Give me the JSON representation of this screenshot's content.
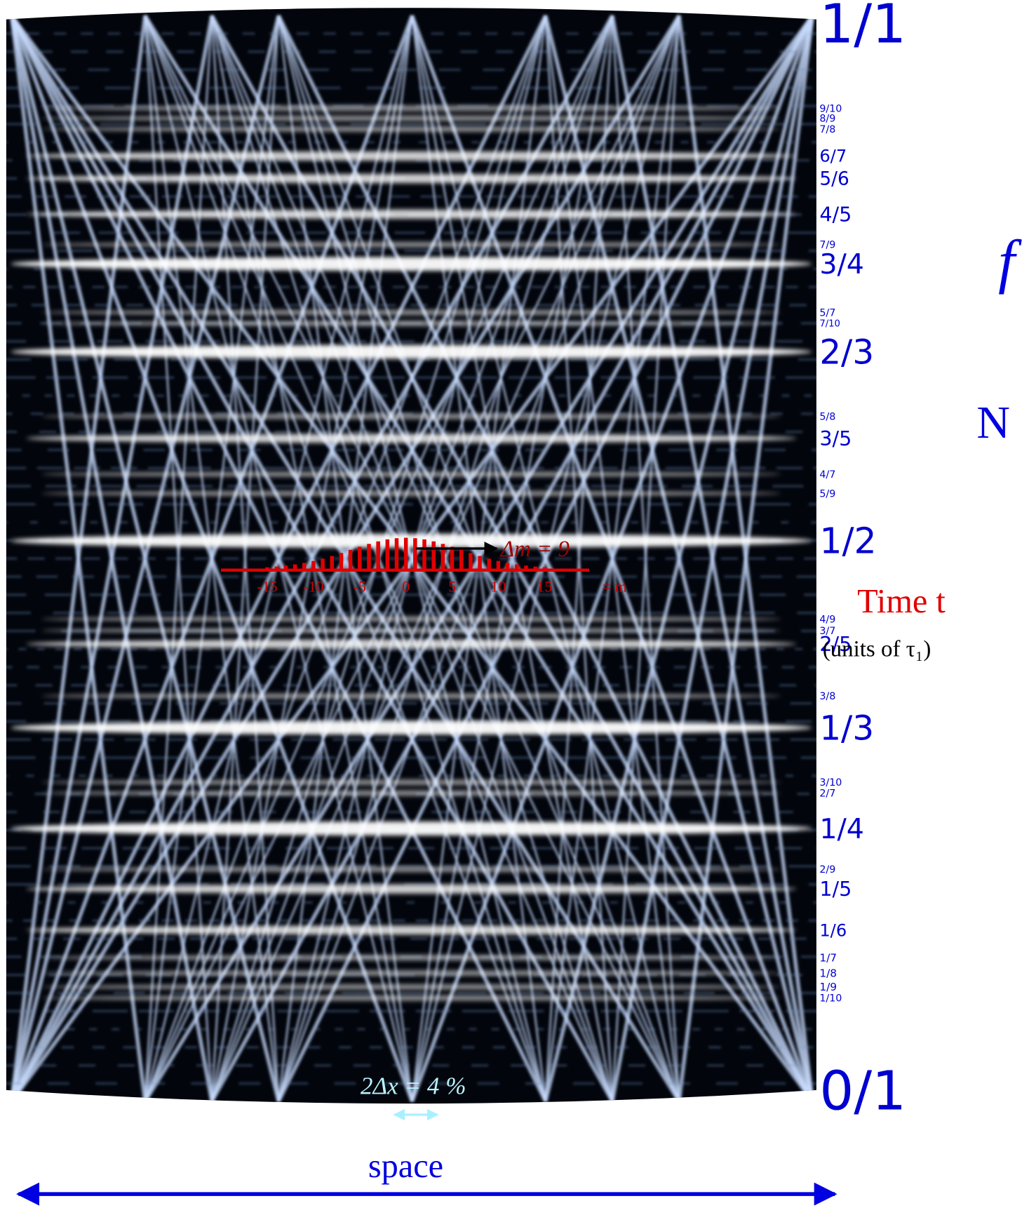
{
  "fractions": [
    "1/1",
    "9/10",
    "8/9",
    "7/8",
    "6/7",
    "5/6",
    "4/5",
    "7/9",
    "3/4",
    "5/7",
    "7/10",
    "2/3",
    "5/8",
    "3/5",
    "4/7",
    "5/9",
    "1/2",
    "4/9",
    "3/7",
    "2/5",
    "3/8",
    "1/3",
    "3/10",
    "2/7",
    "1/4",
    "2/9",
    "1/5",
    "1/6",
    "1/7",
    "1/8",
    "1/9",
    "1/10",
    "0/1"
  ],
  "side_letters": [
    "f",
    "N"
  ],
  "annotations": {
    "delta_m": "Δm = 9",
    "time": "Time t",
    "units": "(units of τ₁)",
    "delta_x": "2Δx = 4 %",
    "space": "space"
  },
  "m_axis": {
    "ticks": [
      -15,
      -10,
      -5,
      0,
      5,
      10,
      15
    ],
    "label": "= m"
  },
  "distribution": {
    "m": [
      -15,
      -14,
      -13,
      -12,
      -11,
      -10,
      -9,
      -8,
      -7,
      -6,
      -5,
      -4,
      -3,
      -2,
      -1,
      0,
      1,
      2,
      3,
      4,
      5,
      6,
      7,
      8,
      9,
      10,
      11,
      12,
      13,
      14,
      15
    ],
    "values": [
      1.7,
      2.6,
      3.8,
      5.4,
      7.4,
      9.9,
      12.9,
      16.4,
      20.2,
      24.3,
      28.3,
      32,
      35.3,
      37.9,
      39.4,
      40,
      39.4,
      37.9,
      35.3,
      32,
      28.3,
      24.3,
      20.2,
      16.4,
      12.9,
      9.9,
      7.4,
      5.4,
      3.8,
      2.6,
      1.7
    ]
  }
}
